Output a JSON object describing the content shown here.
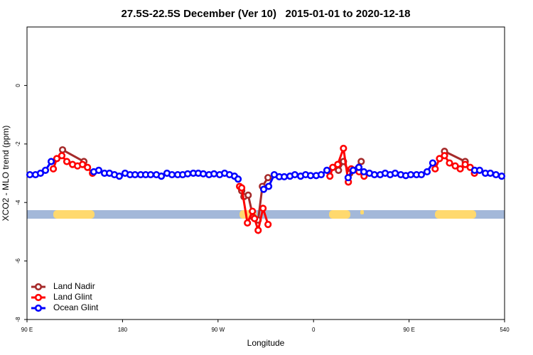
{
  "chart_data": {
    "type": "line",
    "title": "27.5S-22.5S December (Ver 10)   2015-01-01 to 2020-12-18",
    "xlabel": "Longitude",
    "ylabel": "XCO2 - MLO trend (ppm)",
    "xlim": [
      90,
      540
    ],
    "ylim": [
      -8,
      2
    ],
    "xticks": [
      {
        "value": 90,
        "label": "90 E"
      },
      180,
      {
        "value": 270,
        "label": "90 W"
      },
      {
        "value": 360,
        "label": "0"
      },
      {
        "value": 450,
        "label": "90 E"
      },
      540
    ],
    "yticks": [
      -8,
      -6,
      -4,
      -2,
      0
    ],
    "legend": "bottomleft",
    "series": [
      {
        "name": "Land Nadir",
        "color": "#a52a2a",
        "x": [
          123.5,
          143.6,
          200,
          292.3,
          294.4,
          298.4,
          303.1,
          307.8,
          311.8,
          317.1,
          350,
          383.5,
          388.2,
          394.2,
          404.9,
          450,
          483.4,
          502.9
        ],
        "values": [
          -2.2,
          -2.6,
          null,
          -3.6,
          -3.8,
          -3.75,
          -4.5,
          -4.6,
          -3.45,
          -3.15,
          null,
          -2.9,
          -2.6,
          -3.0,
          -2.6,
          null,
          -2.25,
          -2.6
        ]
      },
      {
        "name": "Land Glint",
        "color": "#ff0000",
        "x": [
          114.8,
          118.1,
          122.8,
          127.5,
          132.9,
          137.6,
          142.3,
          147.0,
          151.7,
          240,
          290.3,
          292.3,
          297.7,
          302.4,
          304.4,
          307.8,
          312.4,
          317.1,
          390,
          375.4,
          378.1,
          382.8,
          388.2,
          392.8,
          395.5,
          402.9,
          407.6,
          450,
          474.6,
          478.7,
          483.4,
          488.1,
          493.5,
          498.2,
          502.9,
          507.6,
          511.6
        ],
        "values": [
          -2.85,
          -2.5,
          -2.4,
          -2.6,
          -2.7,
          -2.75,
          -2.7,
          -2.8,
          -3.0,
          null,
          -3.45,
          -3.5,
          -4.7,
          -4.3,
          -4.55,
          -4.95,
          -4.2,
          -4.75,
          null,
          -3.1,
          -2.8,
          -2.7,
          -2.15,
          -3.3,
          -2.85,
          -2.95,
          -3.1,
          null,
          -2.85,
          -2.5,
          -2.4,
          -2.65,
          -2.75,
          -2.85,
          -2.7,
          -2.8,
          -3.0
        ]
      },
      {
        "name": "Ocean Glint",
        "color": "#0000ff",
        "x": [
          92.7,
          98.0,
          102.7,
          107.4,
          112.8,
          130,
          152.9,
          157.6,
          163.0,
          167.7,
          172.4,
          177.0,
          182.4,
          187.1,
          191.8,
          197.1,
          201.8,
          206.5,
          211.9,
          216.6,
          221.9,
          226.6,
          232.0,
          236.7,
          241.4,
          246.7,
          251.4,
          256.1,
          261.5,
          266.2,
          271.5,
          276.2,
          280.8,
          285.5,
          288.9,
          310,
          313.0,
          317.7,
          323.0,
          327.7,
          332.4,
          337.8,
          342.4,
          347.8,
          352.5,
          357.2,
          362.5,
          367.2,
          372.6,
          380,
          392.6,
          397.3,
          402.7,
          407.4,
          412.7,
          417.4,
          422.8,
          427.5,
          432.2,
          436.9,
          442.2,
          446.9,
          451.6,
          457.0,
          461.6,
          467.0,
          472.3,
          500,
          511.8,
          516.5,
          521.9,
          526.6,
          531.9,
          537.3
        ],
        "values": [
          -3.05,
          -3.05,
          -3.0,
          -2.9,
          -2.6,
          null,
          -2.95,
          -2.9,
          -3.0,
          -3.0,
          -3.05,
          -3.1,
          -3.0,
          -3.05,
          -3.05,
          -3.05,
          -3.05,
          -3.05,
          -3.05,
          -3.1,
          -3.0,
          -3.05,
          -3.05,
          -3.05,
          -3.02,
          -3.0,
          -3.0,
          -3.02,
          -3.05,
          -3.02,
          -3.05,
          -3.0,
          -3.05,
          -3.1,
          -3.2,
          null,
          -3.55,
          -3.45,
          -3.05,
          -3.12,
          -3.12,
          -3.1,
          -3.05,
          -3.1,
          -3.05,
          -3.08,
          -3.08,
          -3.05,
          -2.9,
          null,
          -3.15,
          -2.9,
          -2.8,
          -2.95,
          -3.0,
          -3.05,
          -3.05,
          -3.0,
          -3.05,
          -3.0,
          -3.05,
          -3.08,
          -3.05,
          -3.05,
          -3.05,
          -2.95,
          -2.65,
          null,
          -2.9,
          -2.9,
          -3.0,
          -3.0,
          -3.05,
          -3.1
        ]
      }
    ]
  }
}
